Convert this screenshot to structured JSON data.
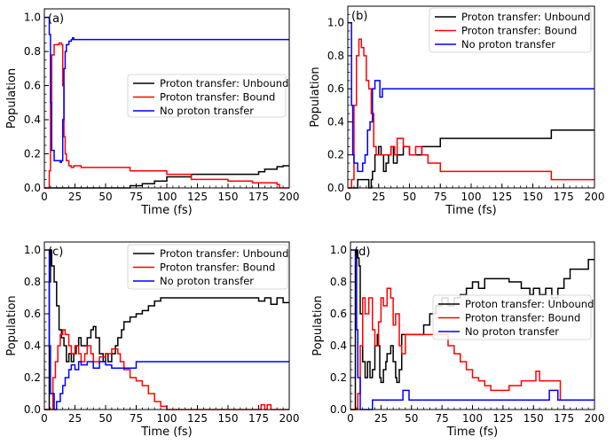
{
  "figure": {
    "legend_labels": [
      "Proton transfer: Unbound",
      "Proton transfer: Bound",
      "No proton transfer"
    ],
    "colors": [
      "#000000",
      "#ff0000",
      "#0000ff"
    ]
  },
  "chart_data": [
    {
      "type": "line",
      "panel_label": "(a)",
      "xlabel": "Time (fs)",
      "ylabel": "Population",
      "xlim": [
        0,
        200
      ],
      "ylim": [
        0,
        1.05
      ],
      "xticks": [
        0,
        25,
        50,
        75,
        100,
        125,
        150,
        175,
        200
      ],
      "yticks": [
        0,
        0.2,
        0.4,
        0.6,
        0.8,
        1.0
      ],
      "ytick_labels": [
        "0.0",
        "0.2",
        "0.4",
        "0.6",
        "0.8",
        "1.0"
      ],
      "legend_position": "center-right",
      "series": [
        {
          "name": "Proton transfer: Unbound",
          "color": "#000000",
          "x": [
            0,
            68,
            70,
            80,
            90,
            100,
            120,
            150,
            170,
            175,
            180,
            185,
            190,
            195,
            200
          ],
          "y": [
            0,
            0,
            0.013,
            0.025,
            0.04,
            0.065,
            0.08,
            0.08,
            0.08,
            0.095,
            0.11,
            0.11,
            0.125,
            0.13,
            0.13
          ]
        },
        {
          "name": "Proton transfer: Bound",
          "color": "#ff0000",
          "x": [
            0,
            3,
            4,
            5,
            6,
            8,
            12,
            14,
            15,
            16,
            17,
            18,
            20,
            22,
            24,
            30,
            50,
            70,
            100,
            120,
            150,
            170,
            190,
            192,
            200
          ],
          "y": [
            0,
            0,
            0.1,
            0.5,
            0.78,
            0.84,
            0.85,
            0.84,
            0.6,
            0.3,
            0.2,
            0.16,
            0.13,
            0.12,
            0.13,
            0.12,
            0.12,
            0.1,
            0.08,
            0.05,
            0.04,
            0.03,
            0.02,
            0,
            0
          ]
        },
        {
          "name": "No proton transfer",
          "color": "#0000ff",
          "x": [
            0,
            3,
            4,
            5,
            6,
            8,
            13,
            14,
            15,
            16,
            17,
            18,
            20,
            22,
            23,
            24,
            200
          ],
          "y": [
            1,
            1,
            0.9,
            0.5,
            0.22,
            0.16,
            0.15,
            0.16,
            0.4,
            0.7,
            0.8,
            0.84,
            0.86,
            0.87,
            0.88,
            0.87,
            0.87
          ]
        }
      ]
    },
    {
      "type": "line",
      "panel_label": "(b)",
      "xlabel": "Time (fs)",
      "ylabel": "Population",
      "xlim": [
        0,
        200
      ],
      "ylim": [
        0,
        1.1
      ],
      "xticks": [
        0,
        25,
        50,
        75,
        100,
        125,
        150,
        175,
        200
      ],
      "yticks": [
        0,
        0.2,
        0.4,
        0.6,
        0.8,
        1.0
      ],
      "ytick_labels": [
        "0.0",
        "0.2",
        "0.4",
        "0.6",
        "0.8",
        "1.0"
      ],
      "legend_position": "top-right",
      "series": [
        {
          "name": "Proton transfer: Unbound",
          "color": "#000000",
          "x": [
            0,
            6,
            8,
            15,
            17,
            19,
            20,
            22,
            25,
            27,
            29,
            31,
            33,
            35,
            37,
            38,
            40,
            45,
            50,
            60,
            75,
            100,
            125,
            150,
            165,
            170,
            200
          ],
          "y": [
            0,
            0,
            0.05,
            0.05,
            0,
            0.05,
            0.1,
            0.2,
            0.25,
            0.2,
            0.1,
            0.15,
            0.2,
            0.25,
            0.15,
            0.15,
            0.2,
            0.25,
            0.2,
            0.25,
            0.3,
            0.3,
            0.3,
            0.3,
            0.35,
            0.35,
            0.35
          ]
        },
        {
          "name": "Proton transfer: Bound",
          "color": "#ff0000",
          "x": [
            0,
            3,
            5,
            7,
            9,
            11,
            13,
            15,
            17,
            19,
            21,
            23,
            25,
            30,
            35,
            38,
            40,
            42,
            45,
            47,
            50,
            55,
            60,
            65,
            70,
            75,
            100,
            125,
            150,
            165,
            170,
            200
          ],
          "y": [
            0,
            0.05,
            0.5,
            0.8,
            0.9,
            0.85,
            0.8,
            0.65,
            0.6,
            0.45,
            0.25,
            0.2,
            0.2,
            0.2,
            0.25,
            0.2,
            0.3,
            0.3,
            0.25,
            0.25,
            0.2,
            0.25,
            0.2,
            0.15,
            0.15,
            0.1,
            0.1,
            0.1,
            0.1,
            0.05,
            0.05,
            0.05
          ]
        },
        {
          "name": "No proton transfer",
          "color": "#0000ff",
          "x": [
            0,
            2,
            3,
            4,
            5,
            8,
            10,
            12,
            14,
            16,
            18,
            20,
            22,
            24,
            26,
            28,
            200
          ],
          "y": [
            1,
            1,
            0.5,
            0.2,
            0.15,
            0.1,
            0.1,
            0.15,
            0.2,
            0.35,
            0.4,
            0.6,
            0.65,
            0.65,
            0.55,
            0.6,
            0.6
          ]
        }
      ]
    },
    {
      "type": "line",
      "panel_label": "(c)",
      "xlabel": "Time (fs)",
      "ylabel": "Population",
      "xlim": [
        0,
        200
      ],
      "ylim": [
        0,
        1.05
      ],
      "xticks": [
        0,
        25,
        50,
        75,
        100,
        125,
        150,
        175,
        200
      ],
      "yticks": [
        0,
        0.2,
        0.4,
        0.6,
        0.8,
        1.0
      ],
      "ytick_labels": [
        "0.0",
        "0.2",
        "0.4",
        "0.6",
        "0.8",
        "1.0"
      ],
      "legend_position": "top-right",
      "series": [
        {
          "name": "Proton transfer: Unbound",
          "color": "#000000",
          "x": [
            0,
            3,
            4,
            5,
            6,
            8,
            10,
            12,
            14,
            16,
            18,
            20,
            22,
            24,
            26,
            28,
            30,
            33,
            35,
            38,
            40,
            42,
            45,
            48,
            50,
            52,
            55,
            58,
            60,
            63,
            65,
            70,
            75,
            80,
            85,
            90,
            95,
            100,
            125,
            150,
            175,
            180,
            185,
            190,
            195,
            200
          ],
          "y": [
            0,
            0,
            0.8,
            1.0,
            0.9,
            0.8,
            0.65,
            0.5,
            0.45,
            0.4,
            0.3,
            0.35,
            0.3,
            0.35,
            0.4,
            0.45,
            0.4,
            0.4,
            0.45,
            0.5,
            0.52,
            0.45,
            0.35,
            0.3,
            0.35,
            0.3,
            0.35,
            0.4,
            0.45,
            0.5,
            0.55,
            0.58,
            0.6,
            0.62,
            0.65,
            0.68,
            0.7,
            0.7,
            0.7,
            0.7,
            0.68,
            0.7,
            0.66,
            0.7,
            0.67,
            0.67
          ]
        },
        {
          "name": "Proton transfer: Bound",
          "color": "#ff0000",
          "x": [
            0,
            5,
            7,
            9,
            11,
            13,
            15,
            17,
            20,
            22,
            25,
            28,
            30,
            33,
            35,
            38,
            40,
            45,
            50,
            55,
            60,
            62,
            65,
            70,
            75,
            80,
            85,
            90,
            95,
            100,
            175,
            177,
            180,
            182,
            185,
            200
          ],
          "y": [
            0,
            0,
            0.2,
            0.3,
            0.4,
            0.47,
            0.5,
            0.47,
            0.4,
            0.35,
            0.4,
            0.35,
            0.3,
            0.35,
            0.4,
            0.35,
            0.3,
            0.33,
            0.35,
            0.38,
            0.35,
            0.3,
            0.25,
            0.2,
            0.18,
            0.15,
            0.1,
            0.05,
            0.02,
            0,
            0,
            0.03,
            0,
            0.03,
            0,
            0
          ]
        },
        {
          "name": "No proton transfer",
          "color": "#0000ff",
          "x": [
            0,
            3,
            4,
            5,
            8,
            10,
            13,
            15,
            17,
            20,
            22,
            25,
            28,
            30,
            35,
            40,
            45,
            50,
            55,
            60,
            65,
            70,
            75,
            200
          ],
          "y": [
            1,
            1,
            0.4,
            0.1,
            0,
            0.05,
            0.1,
            0.15,
            0.2,
            0.25,
            0.28,
            0.25,
            0.3,
            0.28,
            0.3,
            0.26,
            0.3,
            0.28,
            0.26,
            0.26,
            0.26,
            0.26,
            0.3,
            0.3
          ]
        }
      ]
    },
    {
      "type": "line",
      "panel_label": "(d)",
      "xlabel": "Time (fs)",
      "ylabel": "Population",
      "xlim": [
        0,
        200
      ],
      "ylim": [
        0,
        1.05
      ],
      "xticks": [
        0,
        25,
        50,
        75,
        100,
        125,
        150,
        175,
        200
      ],
      "yticks": [
        0,
        0.2,
        0.4,
        0.6,
        0.8,
        1.0
      ],
      "ytick_labels": [
        "0.0",
        "0.2",
        "0.4",
        "0.6",
        "0.8",
        "1.0"
      ],
      "legend_position": "center-right",
      "series": [
        {
          "name": "Proton transfer: Unbound",
          "color": "#000000",
          "x": [
            0,
            3,
            4,
            5,
            6,
            7,
            8,
            10,
            12,
            14,
            16,
            18,
            20,
            22,
            23,
            24,
            25,
            27,
            29,
            30,
            33,
            35,
            37,
            38,
            40,
            42,
            45,
            50,
            55,
            60,
            65,
            70,
            75,
            80,
            85,
            90,
            95,
            100,
            105,
            110,
            120,
            130,
            140,
            145,
            147,
            150,
            155,
            160,
            165,
            170,
            175,
            180,
            185,
            190,
            195,
            200
          ],
          "y": [
            0,
            0,
            0.9,
            1.0,
            0.95,
            0.9,
            0.6,
            0.3,
            0.2,
            0.3,
            0.2,
            0.25,
            0.4,
            0.47,
            0.4,
            0.2,
            0.17,
            0.25,
            0.3,
            0.35,
            0.4,
            0.3,
            0.2,
            0.17,
            0.25,
            0.47,
            0.47,
            0.47,
            0.47,
            0.53,
            0.6,
            0.65,
            0.7,
            0.65,
            0.7,
            0.72,
            0.76,
            0.8,
            0.76,
            0.82,
            0.82,
            0.8,
            0.76,
            0.76,
            0.72,
            0.76,
            0.72,
            0.76,
            0.7,
            0.76,
            0.82,
            0.88,
            0.88,
            0.88,
            0.94,
            0.94
          ]
        },
        {
          "name": "Proton transfer: Bound",
          "color": "#ff0000",
          "x": [
            0,
            5,
            6,
            8,
            10,
            12,
            15,
            18,
            20,
            23,
            25,
            27,
            30,
            33,
            35,
            37,
            40,
            42,
            45,
            50,
            60,
            70,
            75,
            80,
            85,
            90,
            95,
            100,
            105,
            110,
            115,
            120,
            125,
            130,
            140,
            150,
            152,
            155,
            160,
            165,
            170,
            172,
            200
          ],
          "y": [
            0,
            0,
            0.1,
            0.4,
            0.7,
            0.6,
            0.7,
            0.5,
            0.4,
            0.55,
            0.7,
            0.65,
            0.76,
            0.7,
            0.53,
            0.6,
            0.4,
            0.35,
            0.47,
            0.47,
            0.47,
            0.47,
            0.47,
            0.4,
            0.35,
            0.3,
            0.25,
            0.2,
            0.18,
            0.15,
            0.12,
            0.12,
            0.12,
            0.15,
            0.18,
            0.18,
            0.24,
            0.18,
            0.18,
            0.18,
            0.18,
            0.06,
            0.06
          ]
        },
        {
          "name": "No proton transfer",
          "color": "#0000ff",
          "x": [
            0,
            3,
            4,
            5,
            6,
            8,
            10,
            12,
            15,
            18,
            20,
            40,
            43,
            46,
            48,
            50,
            100,
            150,
            160,
            163,
            167,
            170,
            200
          ],
          "y": [
            1,
            1,
            0.9,
            0.5,
            0.2,
            0,
            0,
            0,
            0,
            0.06,
            0.06,
            0.06,
            0.12,
            0.12,
            0.06,
            0.06,
            0.06,
            0.06,
            0.06,
            0.12,
            0.12,
            0.06,
            0.06
          ]
        }
      ]
    }
  ]
}
